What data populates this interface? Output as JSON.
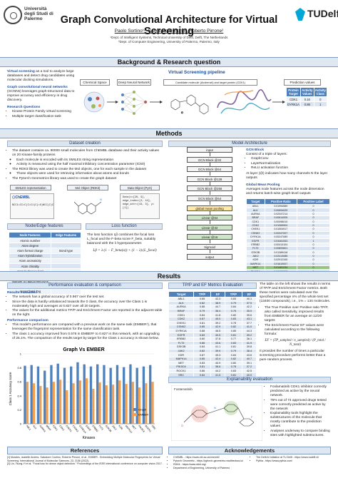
{
  "header": {
    "university_left": "Università degli Studi di Palermo",
    "university_right": "TUDelft",
    "title": "Graph Convolutional Architecture for Virtual Screening",
    "authors": "Paolo Sortino¹², Salvatore Contino², Roberto Pirrone²",
    "affil1": "¹Dept. of Intelligent Systems, Technical University of Delft, Delft, The Netherlands",
    "affil2": "²Dept. of Computer Engineering, University of Palermo, Palermo, Italy"
  },
  "sections": {
    "background": "Background & Research question",
    "methods": "Methods",
    "results": "Results",
    "acknowledgements": "Acknowledgements",
    "references": "References"
  },
  "background": {
    "p1_bold": "Virtual screening",
    "p1": " as a tool to analyze large databases and detect drug candidates using molecular docking simulations.",
    "p2_bold": "Graph convolutional neural networks",
    "p2": " (GCNNs) leverages graph-structured data to improve accuracy and efficiency in drug discovery.",
    "rf_title": "Research Questions",
    "rf1": "Kinase Protein Family virtual screening",
    "rf2": "Multiple target classification task",
    "pipeline_title": "Virtual Screening pipeline",
    "pipe_boxes": [
      "Chemical Space",
      "Deep Neural Network",
      "Candidate molecule (Avobenzil) and target protein (CDK1)",
      "Prediction values"
    ],
    "pred_headers": [
      "Protein Target",
      "Activity Values",
      "Activity Class"
    ],
    "pred_rows": [
      [
        "CDK1",
        "0.16",
        "0"
      ],
      [
        "DYRK1A",
        "0.88",
        "1"
      ]
    ]
  },
  "methods": {
    "dataset_title": "Dataset creation",
    "model_title": "Model Architecture",
    "dataset_bullets": [
      "The dataset contains ca. 90000 small molecules from ChEMBL database and their activity values on 20 Kinase-family proteins",
      "Each molecule is encoded with its SMILES string representation",
      "Activity is measured using the half maximal inhibitory concentration parameter (IC50)",
      "The RDKit library was used to create the Mol objects, one for each sample in the dataset",
      "Those objects were used for retrieving information about atoms and bonds",
      "The Pytorch Geometrics library was used to create the graph dataset"
    ],
    "flow": [
      "SMILES representation",
      "Mol Object (RDKit)",
      "Data Object (PyG)"
    ],
    "smiles": "NCC1=CC=C(C=C1)C(=O)NCC(C)C",
    "data_obj": "Data(x=[20, 9], edge_index=[2, 44], edge_attr=[44, 3], y=[1])",
    "nodeedge_title": "Node/Edge features",
    "loss_title": "Loss function",
    "node_header": "Node Features",
    "edge_header": "Edge Features",
    "node_features": [
      "Atomic number",
      "Atom degree",
      "Atom formal charge",
      "Atom hybridization",
      "Atom aromaticity",
      "Atom chirality",
      "Atom hydrogen (Hs)",
      "Atom ring number",
      "Number of radical electrons",
      "Atom ring/flag (Hs)",
      "Atom ChIral Tag"
    ],
    "edge_features": [
      "Bond type",
      "Bond ring/flag (Hs)"
    ],
    "loss_text": "The loss function Lβ combines the focal loss L_focal and the F-beta score F_beta, suitably balanced with the λ hyperparameter.",
    "loss_formula": "Lβ = λ·(1 − F_beta(α)) + (1 − λ)·(L_focal)",
    "arch_blocks": [
      "input",
      "GCN Block @32",
      "GCN Block @64",
      "GCN Block @128",
      "GCN Block @256",
      "GCN Block @64",
      "global mean pooling",
      "Linear @64",
      "Linear @32",
      "Linear @16",
      "Sigmoid",
      "output"
    ],
    "gcn_title": "GCN Block",
    "gcn_intro": "Consist of a triple of layers:",
    "gcn_layers": [
      "GraphConv",
      "LayerNormalization",
      "ReLU activation function"
    ],
    "gcn_note": "At layer (@) indicates how many channels N the layer outputs",
    "pool_title": "Global Mean Pooling",
    "pool_text": "Averages node features across the node dimension and returns batch-wise graph-level outputs",
    "frac_headers": [
      "Target",
      "Positive Ratio",
      "Positive Label"
    ],
    "frac_rows": [
      [
        "ABL1",
        "0.01994589",
        "0"
      ],
      [
        "ALK",
        "0.00694025",
        "0"
      ],
      [
        "AURKA",
        "0.02047214",
        "0"
      ],
      [
        "BRAF",
        "0.00614005",
        "0"
      ],
      [
        "CDK1",
        "0.00398019",
        "0"
      ],
      [
        "CDK2",
        "0.01069904",
        "0"
      ],
      [
        "CHEK1",
        "0.01504917",
        "0"
      ],
      [
        "CSNK2",
        "0.00347007",
        "0"
      ],
      [
        "DYRK1A",
        "0.00247089",
        "0"
      ],
      [
        "EGFR",
        "0.03461053",
        "1"
      ],
      [
        "ERBB2",
        "0.00414104",
        "0"
      ],
      [
        "FLT3",
        "0.00893601",
        "0"
      ],
      [
        "GSK3B",
        "0.01389418",
        "0"
      ],
      [
        "JAK2",
        "0.02413085",
        "0"
      ],
      [
        "KDR",
        "0.02912345",
        "0"
      ],
      [
        "MAPK14",
        "0.01619007",
        "0"
      ],
      [
        "MET",
        "0.01481234",
        "0"
      ],
      [
        "PIK3CA",
        "0.00976552",
        "0"
      ],
      [
        "ROCK1",
        "0.00461100",
        "0"
      ],
      [
        "SRC",
        "0.01900032",
        "0"
      ]
    ],
    "frac_highlight": 16
  },
  "results": {
    "perf_title": "Performance evaluation & comparison",
    "tpef_title": "TP/P and EF Metrics Evaluation",
    "explain_title": "Explainability evaluation",
    "res_eval_title": "Results evaluation",
    "res_eval": [
      "The network has a global accuracy of 0.967 over the test set.",
      "Since the data is hardly unbalanced towards the 0 class, the accuracy over the Class 1 is moderately high and averages at 0.827 over all 20 targets.",
      "The values for the additional metrics TP/P and Enrichment Factor are reported in the adjacent table on the right."
    ],
    "perf_cmp_title": "Performance comparison",
    "perf_cmp": [
      "This model's performance are compared with a previous work on the same task (EMBER¹), that leverages the fingerprint representation for the same classification task.",
      "The class 1 accuracy improved from 0.576 in EMBER¹ to 0.827 in this network, with an upgrading of 25.1%. The comparison of the results target by target for the Class 1 accuracy is shown below."
    ],
    "tpef_headers": [
      "Target",
      "TP/P",
      "EF",
      "TP/P",
      "EF"
    ],
    "tpef_rows": [
      [
        "ABL1",
        "0.85",
        "42.3",
        "0.83",
        "40.1"
      ],
      [
        "ALK",
        "0.82",
        "38.9",
        "0.79",
        "37.5"
      ],
      [
        "AURKA",
        "0.86",
        "44.7",
        "0.84",
        "42.2"
      ],
      [
        "BRAF",
        "0.79",
        "36.4",
        "0.76",
        "35.0"
      ],
      [
        "CDK1",
        "0.84",
        "41.8",
        "0.80",
        "39.6"
      ],
      [
        "CDK2",
        "0.87",
        "45.0",
        "0.83",
        "43.1"
      ],
      [
        "CHEK1",
        "0.81",
        "39.2",
        "0.78",
        "37.7"
      ],
      [
        "CSNK2",
        "0.85",
        "42.9",
        "0.82",
        "41.0"
      ],
      [
        "DYRK1A",
        "0.88",
        "46.5",
        "0.85",
        "44.3"
      ],
      [
        "EGFR",
        "0.83",
        "40.5",
        "0.81",
        "39.2"
      ],
      [
        "ERBB2",
        "0.80",
        "37.8",
        "0.77",
        "36.1"
      ],
      [
        "FLT3",
        "0.86",
        "43.6",
        "0.83",
        "41.9"
      ],
      [
        "GSK3B",
        "0.84",
        "41.1",
        "0.81",
        "39.8"
      ],
      [
        "JAK2",
        "0.82",
        "39.9",
        "0.79",
        "38.4"
      ],
      [
        "KDR",
        "0.87",
        "45.3",
        "0.84",
        "43.6"
      ],
      [
        "MAPK14",
        "0.85",
        "42.4",
        "0.82",
        "40.7"
      ],
      [
        "MET",
        "0.83",
        "40.9",
        "0.80",
        "39.1"
      ],
      [
        "PIK3CA",
        "0.81",
        "38.6",
        "0.78",
        "37.2"
      ],
      [
        "ROCK1",
        "0.86",
        "44.2",
        "0.83",
        "42.5"
      ],
      [
        "SRC",
        "0.84",
        "41.5",
        "0.81",
        "40.0"
      ]
    ],
    "tpef_text1": "The table on the left shows the results in terms of TP/P and Enrichment Factor metrics. Both these metrics were calculated over the specified percentage n% of the whole test set (13400 compounds), i.e., 1% = 134 molecules.",
    "tpef_b1": "The True Positive over Positive ratio TP/P, also called Sensitivity, improved results from EMBER for an average on 12/20 targets",
    "tpef_b2": "The Enrichment Factor EF values were calculated according to the following formula:",
    "ef_formula": "EF = (TP_sampled / n_sampled) / (P_total / N_total)",
    "tpef_text2": "It provides the number of times a particular screening procedure performs better than a pure random process.",
    "explain_points": [
      "Foxlamatinib CDK1 inhibitor correctly predicted as active by the neural network.",
      "75% out of 74 approved drugs tested were correctly predicted as active by the network",
      "Explainability tools highlight the substructures of the molecule that mostly contribute to the prediction values",
      "Analyses underway to compare binding sites with highlighted substructures."
    ],
    "explain_label": "Fostamatinib"
  },
  "chart_data": {
    "type": "bar",
    "title": "Graph Vs EMBER",
    "xlabel": "Kinases",
    "ylabel": "Class 1 Accuracy score",
    "ylim": [
      0,
      1
    ],
    "categories": [
      "ABL1",
      "ALK",
      "AURKA",
      "BRAF",
      "CDK1",
      "CDK2",
      "CHEK1",
      "CSNK2",
      "DYRK1A",
      "EGFR",
      "ERBB2",
      "FLT3",
      "GSK3B",
      "JAK2",
      "KDR",
      "MAPK14",
      "MET",
      "PIK3CA",
      "ROCK1",
      "SRC"
    ],
    "series": [
      {
        "name": "Graph",
        "color": "#4f81bd",
        "values": [
          0.83,
          0.84,
          0.82,
          0.76,
          0.84,
          0.86,
          0.8,
          0.82,
          0.88,
          0.85,
          0.82,
          0.85,
          0.84,
          0.8,
          0.84,
          0.81,
          0.85,
          0.8,
          0.82,
          0.84
        ]
      },
      {
        "name": "EMBER",
        "color": "#f0a050",
        "values": [
          0.6,
          0.58,
          0.54,
          0.52,
          0.6,
          0.63,
          0.48,
          0.58,
          0.62,
          0.65,
          0.5,
          0.59,
          0.55,
          0.56,
          0.62,
          0.57,
          0.6,
          0.52,
          0.58,
          0.6
        ]
      }
    ],
    "yticks": [
      "0",
      "0.2",
      "0.4",
      "0.6",
      "0.8",
      "1"
    ]
  },
  "footer": {
    "references": [
      "[1] Morales, Isabelle Andres, Salvatore Contino, Roberto Pirrone, et al., EMBER - Embedding Multiple Molecular Fingerprints for Virtual Screening. International Journal of Molecular Sciences, 23, 2156 (2022).",
      "[2] Lin, Tsung-Yi et al. \"Focal loss for dense object detection.\" Proceedings of the IEEE international conference on computer vision 2017."
    ],
    "ack_left": [
      "ChEMBL - https://www.ebi.ac.uk/chembl/",
      "Pytorch Geometric - https://pytorch-geometric.readthedocs.io/",
      "RDKit - https://www.rdkit.org/",
      "Department of Engineering, University of Palermo"
    ],
    "ack_right": [
      "The Delft AI Initiative at TU Delft - https://www.tudelft.nl/",
      "Pythia - https://www.pythia.com/"
    ]
  }
}
